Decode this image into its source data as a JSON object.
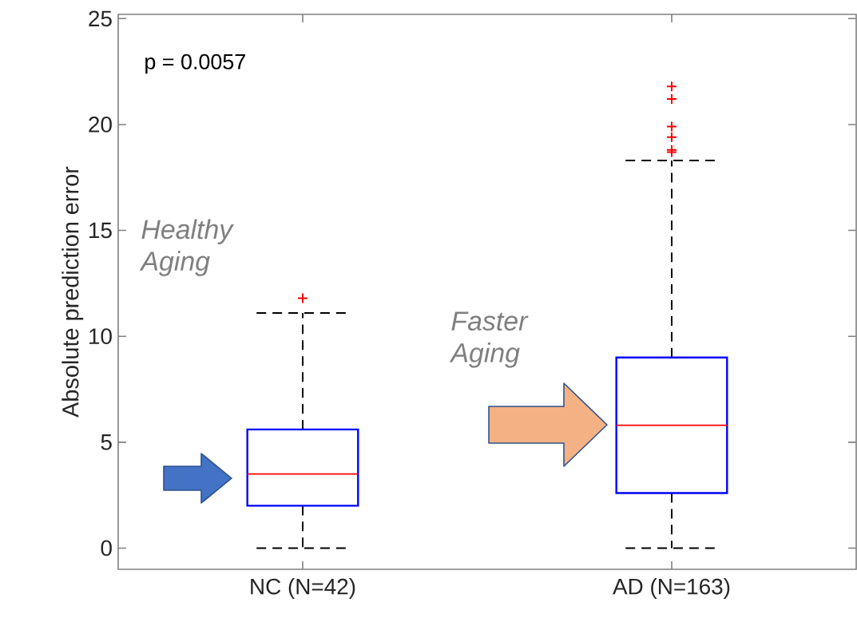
{
  "chart_data": {
    "type": "box",
    "ylabel": "Absolute prediction error",
    "categories": [
      "NC (N=42)",
      "AD (N=163)"
    ],
    "series": [
      {
        "color": "#0000ff",
        "boxes": [
          {
            "low": 0,
            "q1": 2.0,
            "median": 3.5,
            "q3": 5.6,
            "high": 11.1,
            "outliers": [
              11.8
            ]
          },
          {
            "low": 0,
            "q1": 2.6,
            "median": 5.8,
            "q3": 9.0,
            "high": 18.3,
            "outliers": [
              21.8,
              21.2,
              19.9,
              19.4,
              18.8,
              18.7
            ]
          }
        ]
      }
    ],
    "ylim": [
      -1,
      25.2
    ],
    "yticks": [
      0,
      5,
      10,
      15,
      20,
      25
    ],
    "grid": false,
    "annotations": [
      "p = 0.0057",
      "Healthy Aging",
      "Faster Aging"
    ]
  }
}
